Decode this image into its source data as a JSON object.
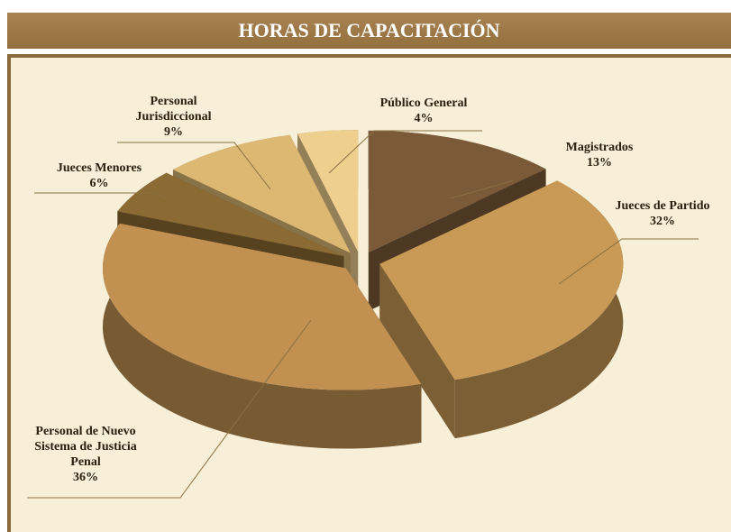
{
  "chart_data": {
    "type": "pie",
    "title": "HORAS DE CAPACITACIÓN",
    "categories": [
      "Magistrados",
      "Jueces de Partido",
      "Personal de Nuevo Sistema de Justicia Penal",
      "Jueces Menores",
      "Personal Jurisdiccional",
      "Público General"
    ],
    "values": [
      13,
      32,
      36,
      6,
      9,
      4
    ],
    "value_labels": [
      "13%",
      "32%",
      "36%",
      "6%",
      "9%",
      "4%"
    ],
    "colors": [
      "#7a5a38",
      "#c89a55",
      "#c29152",
      "#8c6a34",
      "#dcb872",
      "#efcf8e"
    ]
  }
}
